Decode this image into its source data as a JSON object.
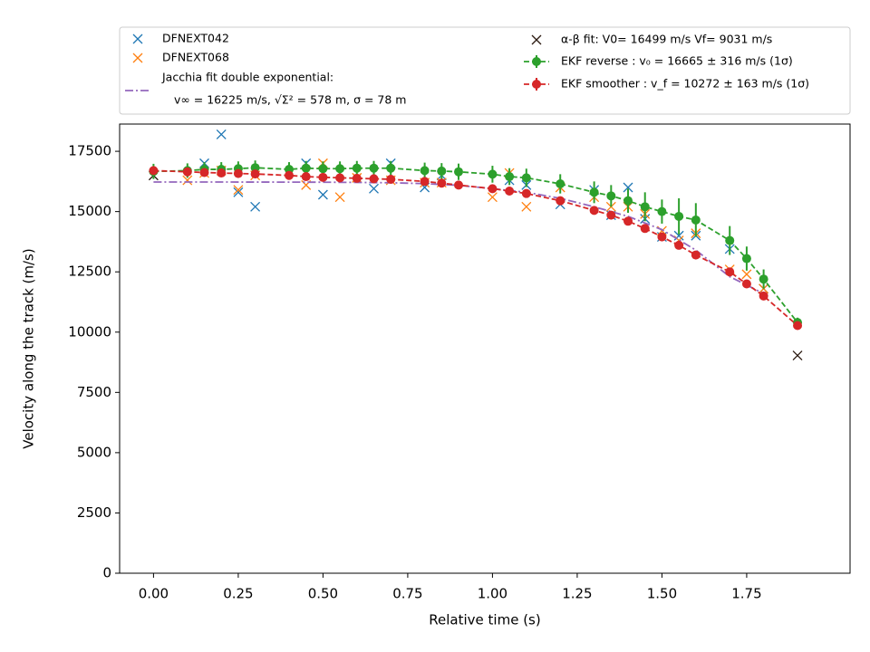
{
  "chart_data": {
    "type": "line",
    "xlabel": "Relative time (s)",
    "ylabel": "Velocity along the track (m/s)",
    "xlim": [
      -0.1,
      2.055
    ],
    "ylim": [
      0,
      18630
    ],
    "xticks": [
      {
        "value": 0,
        "label": "0.00"
      },
      {
        "value": 0.25,
        "label": "0.25"
      },
      {
        "value": 0.5,
        "label": "0.50"
      },
      {
        "value": 0.75,
        "label": "0.75"
      },
      {
        "value": 1,
        "label": "1.00"
      },
      {
        "value": 1.25,
        "label": "1.25"
      },
      {
        "value": 1.5,
        "label": "1.50"
      },
      {
        "value": 1.75,
        "label": "1.75"
      }
    ],
    "yticks": [
      0,
      2500,
      5000,
      7500,
      10000,
      12500,
      15000,
      17500
    ],
    "legend_loc": "above",
    "series": [
      {
        "name": "DFNEXT042",
        "color": "#1f77b4",
        "marker": "x",
        "linestyle": null,
        "x": [
          0.15,
          0.2,
          0.25,
          0.3,
          0.45,
          0.5,
          0.65,
          0.7,
          0.8,
          0.85,
          1.05,
          1.1,
          1.2,
          1.3,
          1.35,
          1.4,
          1.45,
          1.5,
          1.55,
          1.6,
          1.7,
          1.8
        ],
        "values": [
          17000,
          18200,
          15800,
          15200,
          17000,
          15700,
          15950,
          17000,
          16000,
          16500,
          16300,
          16100,
          15300,
          15900,
          14850,
          16000,
          14700,
          13950,
          14000,
          14000,
          13450,
          11800
        ]
      },
      {
        "name": "DFNEXT068",
        "color": "#ff7f0e",
        "marker": "x",
        "linestyle": null,
        "x": [
          0.1,
          0.15,
          0.2,
          0.25,
          0.3,
          0.45,
          0.5,
          0.55,
          0.6,
          0.7,
          0.8,
          0.85,
          1.0,
          1.05,
          1.1,
          1.2,
          1.3,
          1.35,
          1.4,
          1.45,
          1.5,
          1.55,
          1.6,
          1.7,
          1.75,
          1.8
        ],
        "values": [
          16300,
          16600,
          16700,
          15900,
          16500,
          16100,
          17000,
          15600,
          16400,
          16300,
          16200,
          16200,
          15600,
          16600,
          15200,
          16000,
          15600,
          15200,
          15200,
          14900,
          14200,
          13800,
          14100,
          12600,
          12400,
          11800
        ]
      },
      {
        "name": "Jacchia fit double exponential:",
        "name_detail": "v∞ = 16225 m/s, √Σ² = 578 m, σ = 78 m",
        "color": "#9467bd",
        "marker": null,
        "linestyle": "dashdot",
        "x": [
          0,
          0.1,
          0.2,
          0.3,
          0.4,
          0.5,
          0.6,
          0.7,
          0.8,
          0.9,
          1.0,
          1.1,
          1.2,
          1.3,
          1.4,
          1.5,
          1.6,
          1.7,
          1.8
        ],
        "values": [
          16225,
          16225,
          16225,
          16224,
          16222,
          16218,
          16210,
          16195,
          16160,
          16090,
          15950,
          15800,
          15550,
          15200,
          14800,
          14250,
          13400,
          12300,
          11600
        ]
      },
      {
        "name": "α-β fit: V0= 16499 m/s   Vf= 9031 m/s",
        "color": "#2b1a10",
        "marker": "x",
        "linestyle": null,
        "x": [
          0,
          1.9
        ],
        "values": [
          16499,
          9031
        ]
      },
      {
        "name": "EKF reverse : v₀ =  16665 ± 316 m/s (1σ)",
        "color": "#2ca02c",
        "marker": "o",
        "linestyle": "dashed",
        "x": [
          0,
          0.1,
          0.15,
          0.2,
          0.25,
          0.3,
          0.4,
          0.45,
          0.5,
          0.55,
          0.6,
          0.65,
          0.7,
          0.8,
          0.85,
          0.9,
          1.0,
          1.05,
          1.1,
          1.2,
          1.3,
          1.35,
          1.4,
          1.45,
          1.5,
          1.55,
          1.6,
          1.7,
          1.75,
          1.8,
          1.9
        ],
        "values": [
          16665,
          16700,
          16750,
          16750,
          16780,
          16820,
          16750,
          16800,
          16780,
          16780,
          16800,
          16800,
          16800,
          16700,
          16680,
          16650,
          16550,
          16450,
          16400,
          16150,
          15800,
          15650,
          15450,
          15200,
          15000,
          14800,
          14650,
          13800,
          13050,
          12200,
          10400
        ],
        "errors": [
          316,
          300,
          300,
          300,
          300,
          300,
          300,
          300,
          300,
          300,
          300,
          300,
          300,
          330,
          330,
          340,
          350,
          350,
          380,
          400,
          450,
          450,
          500,
          600,
          500,
          750,
          700,
          600,
          500,
          400,
          200
        ]
      },
      {
        "name": "EKF smoother : v_f =  10272 ± 163 m/s (1σ)",
        "color": "#d62728",
        "marker": "o",
        "linestyle": "dashed",
        "x": [
          0,
          0.1,
          0.15,
          0.2,
          0.25,
          0.3,
          0.4,
          0.45,
          0.5,
          0.55,
          0.6,
          0.65,
          0.7,
          0.8,
          0.85,
          0.9,
          1.0,
          1.05,
          1.1,
          1.2,
          1.3,
          1.35,
          1.4,
          1.45,
          1.5,
          1.55,
          1.6,
          1.7,
          1.75,
          1.8,
          1.9
        ],
        "values": [
          16700,
          16650,
          16620,
          16600,
          16580,
          16560,
          16500,
          16450,
          16420,
          16400,
          16380,
          16360,
          16340,
          16250,
          16180,
          16100,
          15950,
          15850,
          15750,
          15450,
          15050,
          14850,
          14600,
          14300,
          13950,
          13600,
          13200,
          12500,
          12000,
          11500,
          10272
        ],
        "errors": [
          163,
          163,
          163,
          163,
          163,
          163,
          163,
          163,
          163,
          163,
          163,
          163,
          163,
          163,
          163,
          163,
          163,
          163,
          163,
          163,
          163,
          163,
          163,
          163,
          163,
          163,
          163,
          163,
          163,
          163,
          163
        ]
      }
    ]
  }
}
